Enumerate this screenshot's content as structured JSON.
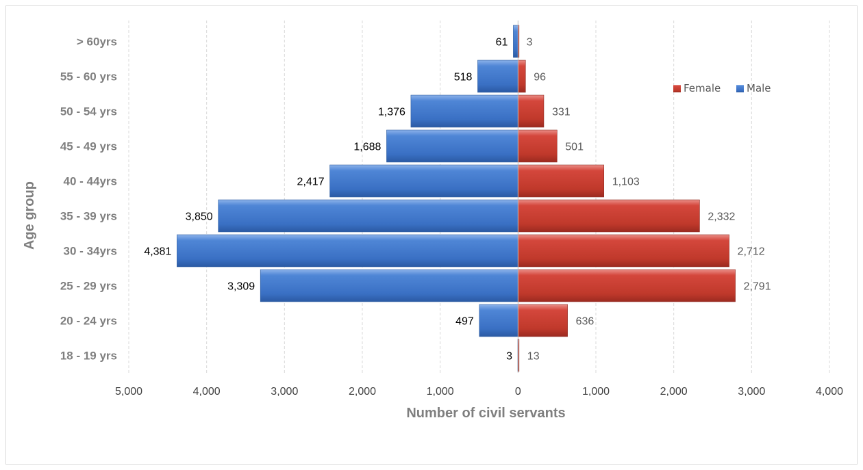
{
  "chart_data": {
    "type": "bar",
    "orientation": "horizontal",
    "layout": "population-pyramid",
    "categories": [
      "18 - 19 yrs",
      "20 - 24 yrs",
      "25 - 29 yrs",
      "30 - 34yrs",
      "35 - 39 yrs",
      "40 - 44yrs",
      "45 - 49 yrs",
      "50 - 54 yrs",
      "55 - 60 yrs",
      "> 60yrs"
    ],
    "series": [
      {
        "name": "Male",
        "color": "#4472c4",
        "direction": "left",
        "values": [
          3,
          497,
          3309,
          4381,
          3850,
          2417,
          1688,
          1376,
          518,
          61
        ],
        "labels": [
          "3",
          "497",
          "3,309",
          "4,381",
          "3,850",
          "2,417",
          "1,688",
          "1,376",
          "518",
          "61"
        ]
      },
      {
        "name": "Female",
        "color": "#c0392b",
        "direction": "right",
        "values": [
          13,
          636,
          2791,
          2712,
          2332,
          1103,
          501,
          331,
          96,
          3
        ],
        "labels": [
          "13",
          "636",
          "2,791",
          "2,712",
          "2,332",
          "1,103",
          "501",
          "331",
          "96",
          "3"
        ]
      }
    ],
    "xlim": [
      -5000,
      4000
    ],
    "xticks": [
      -5000,
      -4000,
      -3000,
      -2000,
      -1000,
      0,
      1000,
      2000,
      3000,
      4000
    ],
    "xtick_labels": [
      "5,000",
      "4,000",
      "3,000",
      "2,000",
      "1,000",
      "0",
      "1,000",
      "2,000",
      "3,000",
      "4,000"
    ],
    "xlabel": "Number of civil servants",
    "ylabel": "Age group",
    "grid": "vertical-dashed",
    "legend": {
      "position": "right",
      "entries": [
        "Female",
        "Male"
      ]
    }
  }
}
